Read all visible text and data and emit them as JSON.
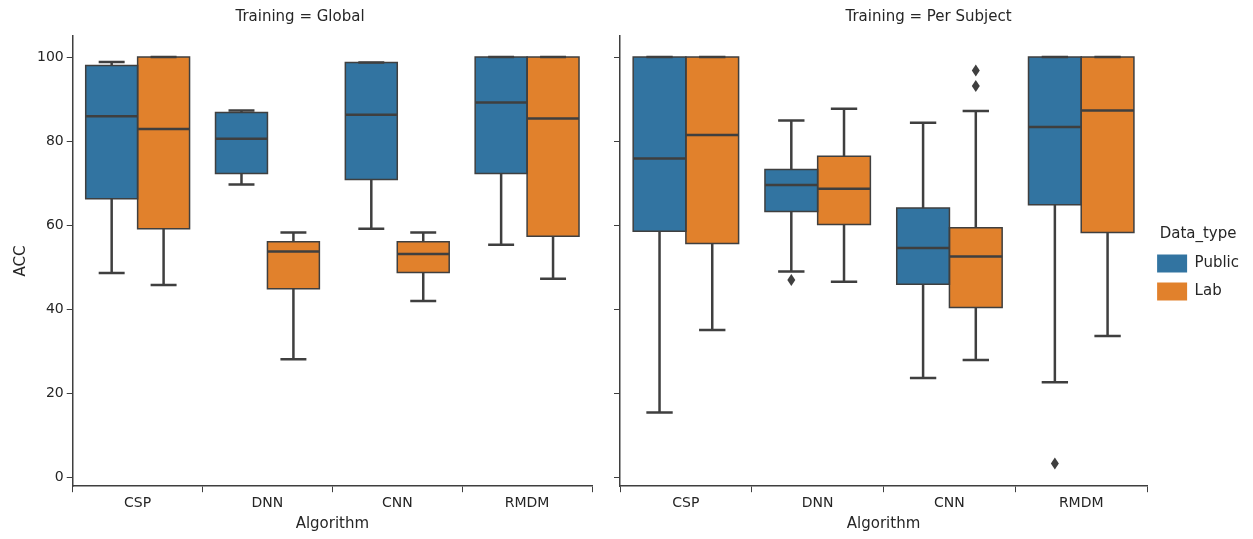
{
  "chart_data": [
    {
      "type": "box",
      "title": "Training = Global",
      "xlabel": "Algorithm",
      "ylabel": "ACC",
      "categories": [
        "CSP",
        "DNN",
        "CNN",
        "RMDM"
      ],
      "ylim": [
        -2,
        105
      ],
      "yticks": [
        0,
        20,
        40,
        60,
        80,
        100
      ],
      "grid": false,
      "legend": false,
      "series": [
        {
          "color": "#3274a1",
          "boxes": [
            {
              "low": 48.7,
              "q1": 66.3,
              "median": 85.9,
              "q3": 98,
              "high": 98.8
            },
            {
              "low": 69.7,
              "q1": 72.3,
              "median": 80.6,
              "q3": 86.8,
              "high": 87.3
            },
            {
              "low": 59.2,
              "q1": 70.9,
              "median": 86.3,
              "q3": 98.7,
              "high": 98.7
            },
            {
              "low": 55.4,
              "q1": 72.3,
              "median": 89.2,
              "q3": 100,
              "high": 100
            }
          ]
        },
        {
          "color": "#e1812c",
          "boxes": [
            {
              "low": 45.8,
              "q1": 59.2,
              "median": 82.9,
              "q3": 100,
              "high": 100
            },
            {
              "low": 28.2,
              "q1": 44.9,
              "median": 53.8,
              "q3": 56.1,
              "high": 58.3
            },
            {
              "low": 42,
              "q1": 48.8,
              "median": 53.2,
              "q3": 56.1,
              "high": 58.3
            },
            {
              "low": 47.3,
              "q1": 57.4,
              "median": 85.4,
              "q3": 100,
              "high": 100
            }
          ]
        }
      ]
    },
    {
      "type": "box",
      "title": "Training = Per Subject",
      "xlabel": "Algorithm",
      "categories": [
        "CSP",
        "DNN",
        "CNN",
        "RMDM"
      ],
      "ylim": [
        -2,
        105
      ],
      "yticks": [
        0,
        20,
        40,
        60,
        80,
        100
      ],
      "tick_labels": "x",
      "grid": false,
      "legend": "right",
      "legend_title": "Data_type",
      "series": [
        {
          "name": "Public",
          "color": "#3274a1",
          "boxes": [
            {
              "low": 15.5,
              "q1": 58.6,
              "median": 75.9,
              "q3": 100,
              "high": 100
            },
            {
              "low": 49,
              "q1": 63.3,
              "median": 69.6,
              "q3": 73.3,
              "high": 84.9,
              "outliers": [
                47
              ]
            },
            {
              "low": 23.7,
              "q1": 46,
              "median": 54.6,
              "q3": 64.1,
              "high": 84.4
            },
            {
              "low": 22.7,
              "q1": 64.9,
              "median": 83.4,
              "q3": 100,
              "high": 100,
              "outliers": [
                3.4
              ]
            }
          ]
        },
        {
          "name": "Lab",
          "color": "#e1812c",
          "boxes": [
            {
              "low": 35.1,
              "q1": 55.7,
              "median": 81.5,
              "q3": 100,
              "high": 100
            },
            {
              "low": 46.6,
              "q1": 60.2,
              "median": 68.7,
              "q3": 76.4,
              "high": 87.7
            },
            {
              "low": 28,
              "q1": 40.5,
              "median": 52.6,
              "q3": 59.4,
              "high": 87.2,
              "outliers": [
                96.8,
                93.1
              ]
            },
            {
              "low": 33.7,
              "q1": 58.3,
              "median": 87.3,
              "q3": 100,
              "high": 100
            }
          ]
        }
      ]
    }
  ]
}
